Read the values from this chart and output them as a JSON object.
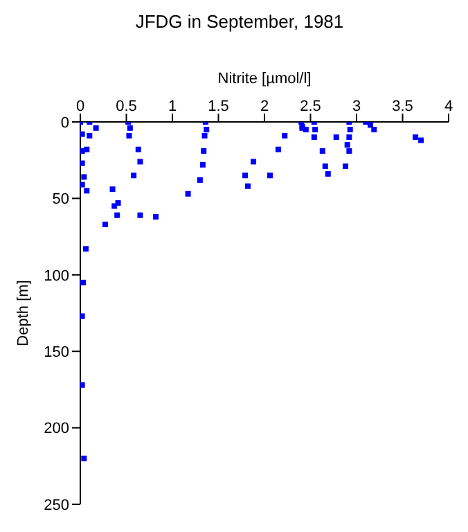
{
  "chart_data": {
    "type": "scatter",
    "title": "JFDG in September, 1981",
    "xlabel": "Nitrite [µmol/l]",
    "ylabel": "Depth [m]",
    "xlim": [
      0,
      4
    ],
    "xticks": [
      0,
      0.5,
      1,
      1.5,
      2,
      2.5,
      3,
      3.5,
      4
    ],
    "ylim": [
      250,
      0
    ],
    "yticks": [
      0,
      50,
      100,
      150,
      200,
      250
    ],
    "grid": false,
    "legend": false,
    "marker": "square",
    "series": [
      {
        "color": "#0000ff",
        "x": [
          0,
          0.1,
          0.17,
          0.02,
          0.1,
          0.02,
          0.07,
          0.02,
          0.04,
          0.02,
          0.07,
          0.52,
          0.54,
          0.53,
          0.63,
          0.65,
          0.58,
          0.35,
          1.36,
          1.37,
          1.35,
          1.34,
          1.33,
          1.3,
          1.17,
          1.79,
          1.82,
          1.88,
          2.06,
          2.15,
          2.22,
          2.4,
          2.41,
          2.41,
          2.45,
          2.54,
          2.55,
          2.54,
          2.63,
          2.66,
          2.69,
          2.78,
          2.92,
          2.93,
          2.92,
          2.9,
          2.92,
          2.88,
          3.1,
          3.15,
          3.19,
          3.64,
          3.7,
          0.37,
          0.41,
          0.4,
          0.65,
          0.82,
          0.27,
          0.06,
          0.03,
          0.02,
          0.02,
          0.04
        ],
        "values": [
          0,
          0,
          4,
          8,
          9,
          19,
          18,
          27,
          36,
          41,
          45,
          0,
          4,
          9,
          18,
          26,
          35,
          44,
          0,
          5,
          9,
          19,
          28,
          38,
          47,
          35,
          42,
          26,
          35,
          18,
          9,
          0,
          3,
          4,
          5,
          0,
          5,
          10,
          19,
          29,
          34,
          10,
          0,
          5,
          10,
          15,
          19,
          29,
          0,
          2,
          5,
          10,
          12,
          55,
          53,
          61,
          61,
          62,
          67,
          83,
          105,
          127,
          172,
          220
        ]
      }
    ]
  }
}
